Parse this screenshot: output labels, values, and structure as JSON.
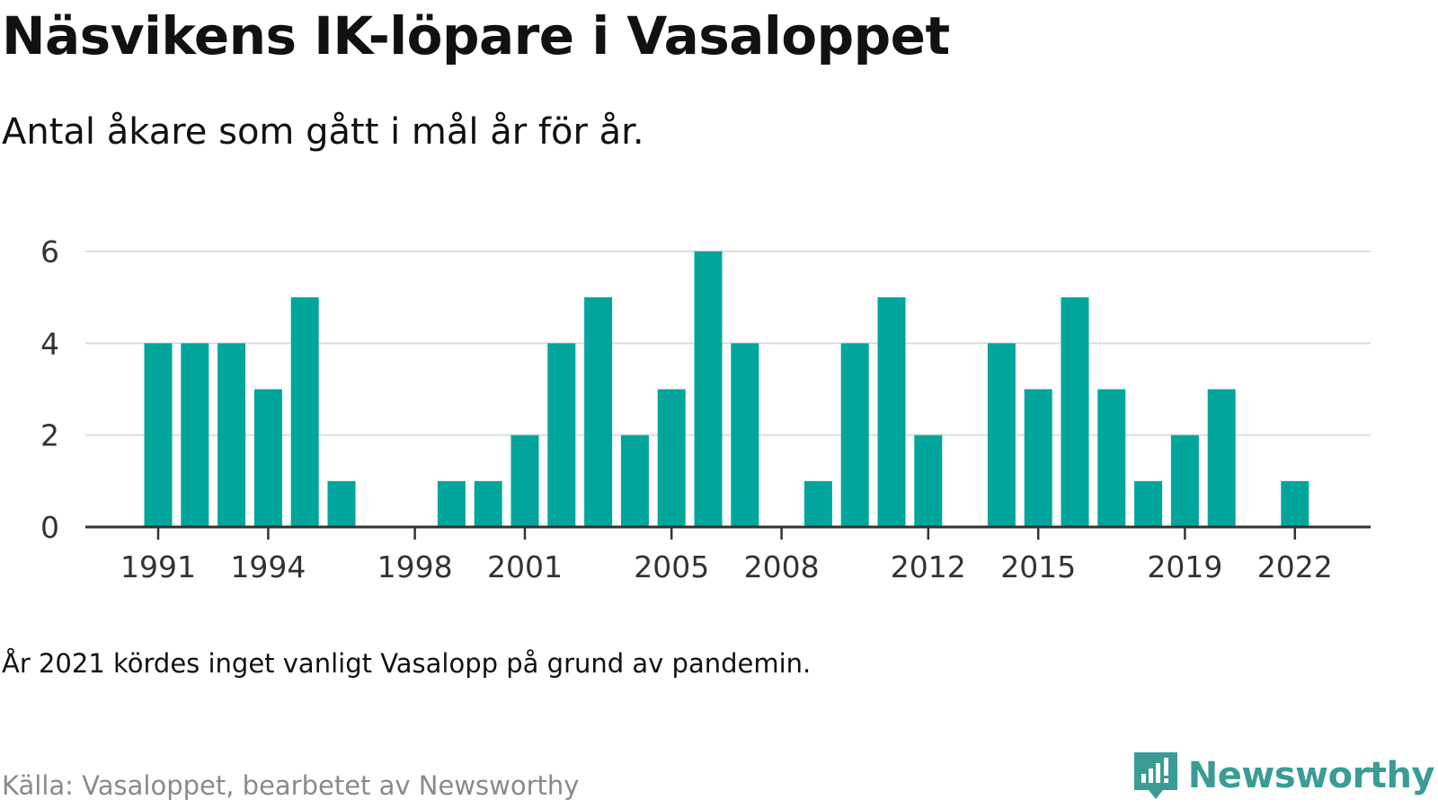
{
  "title": "Näsvikens IK-löpare i Vasaloppet",
  "subtitle": "Antal åkare som gått i mål år för år.",
  "note": "År 2021 kördes inget vanligt Vasalopp på grund av pandemin.",
  "source": "Källa: Vasaloppet, bearbetet av Newsworthy",
  "brand": {
    "name": "Newsworthy",
    "icon": "newsworthy-logo-icon",
    "color": "#3a9c95"
  },
  "chart_data": {
    "type": "bar",
    "title": "Näsvikens IK-löpare i Vasaloppet",
    "subtitle": "Antal åkare som gått i mål år för år.",
    "xlabel": "",
    "ylabel": "",
    "x": [
      1991,
      1992,
      1993,
      1994,
      1995,
      1996,
      1997,
      1998,
      1999,
      2000,
      2001,
      2002,
      2003,
      2004,
      2005,
      2006,
      2007,
      2008,
      2009,
      2010,
      2011,
      2012,
      2013,
      2014,
      2015,
      2016,
      2017,
      2018,
      2019,
      2020,
      2021,
      2022
    ],
    "values": [
      4,
      4,
      4,
      3,
      5,
      1,
      0,
      0,
      1,
      1,
      2,
      4,
      5,
      2,
      3,
      6,
      4,
      0,
      1,
      4,
      5,
      2,
      0,
      4,
      3,
      5,
      3,
      1,
      2,
      3,
      0,
      1
    ],
    "x_ticks": [
      1991,
      1994,
      1998,
      2001,
      2005,
      2008,
      2012,
      2015,
      2019,
      2022
    ],
    "y_ticks": [
      0,
      2,
      4,
      6
    ],
    "ylim": [
      0,
      6
    ],
    "grid": true,
    "legend": "none",
    "bar_color": "#00a69c",
    "grid_color": "#dddddd",
    "axis_color": "#333333"
  }
}
